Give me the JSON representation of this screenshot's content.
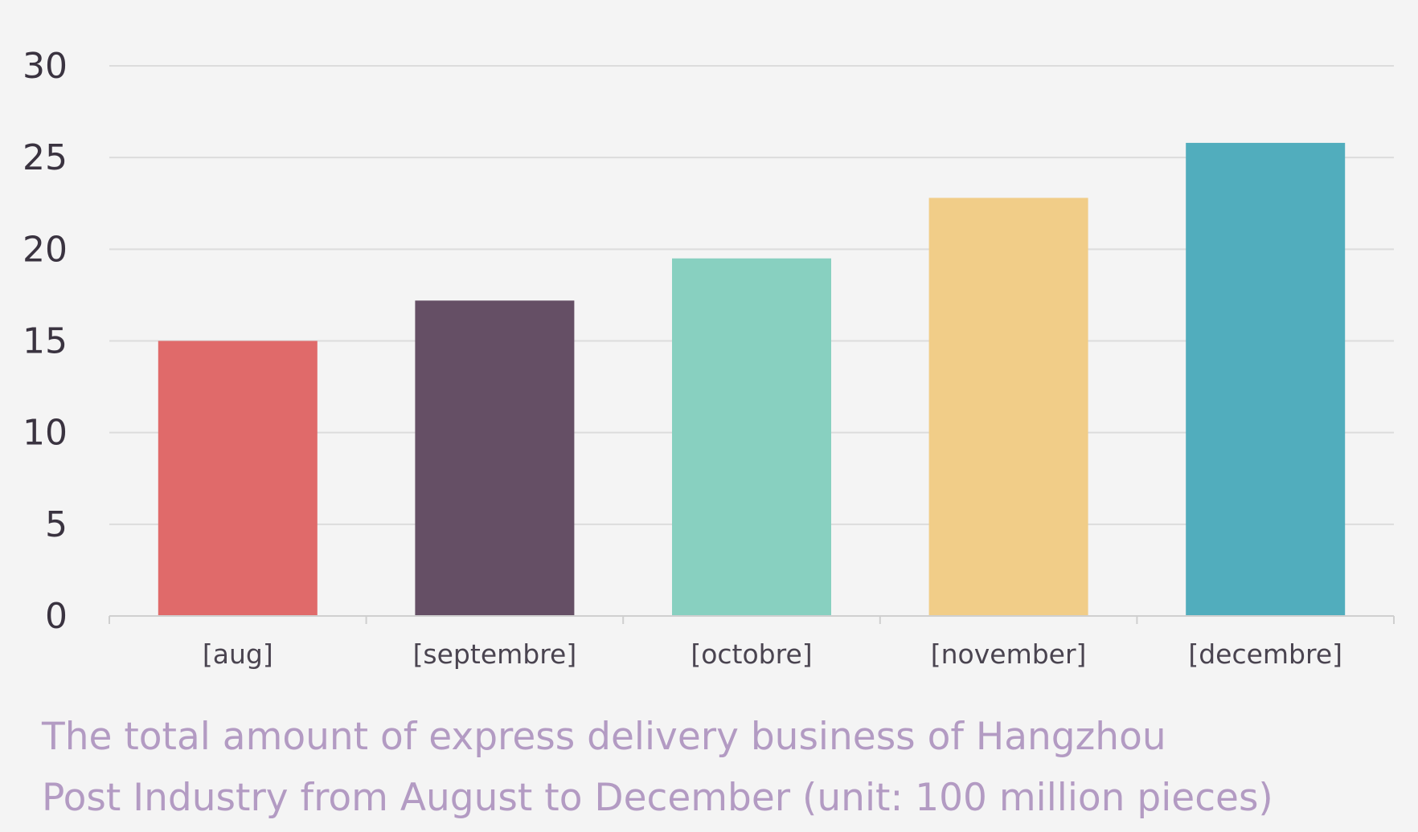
{
  "chart_data": {
    "type": "bar",
    "categories": [
      "[aug]",
      "[septembre]",
      "[octobre]",
      "[november]",
      "[decembre]"
    ],
    "values": [
      15,
      17.2,
      19.5,
      22.8,
      25.8
    ],
    "colors": [
      "#e06a6a",
      "#654f65",
      "#88d0c0",
      "#f1cd88",
      "#51adbd"
    ],
    "ylim": [
      0,
      30
    ],
    "yticks": [
      0,
      5,
      10,
      15,
      20,
      25,
      30
    ],
    "grid": true,
    "xlabel": "",
    "ylabel": "",
    "caption": [
      "The total amount of express delivery business of Hangzhou",
      "Post Industry from August to December (unit: 100 million pieces)"
    ]
  }
}
